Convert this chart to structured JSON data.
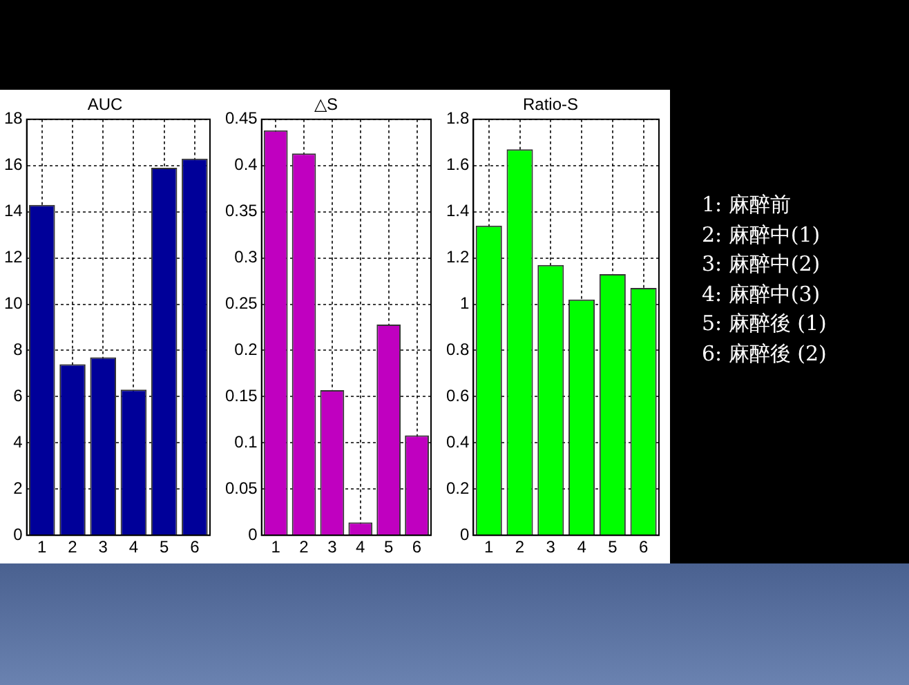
{
  "chart_data": [
    {
      "type": "bar",
      "title": "AUC",
      "categories": [
        "1",
        "2",
        "3",
        "4",
        "5",
        "6"
      ],
      "values": [
        14.3,
        7.4,
        7.7,
        6.3,
        15.9,
        16.3
      ],
      "color": "#000099",
      "ylim": [
        0,
        18
      ],
      "yticks": [
        0,
        2,
        4,
        6,
        8,
        10,
        12,
        14,
        16,
        18
      ],
      "grid": true
    },
    {
      "type": "bar",
      "title": "△S",
      "categories": [
        "1",
        "2",
        "3",
        "4",
        "5",
        "6"
      ],
      "values": [
        0.438,
        0.413,
        0.157,
        0.014,
        0.228,
        0.108
      ],
      "color": "#c000c0",
      "ylim": [
        0,
        0.45
      ],
      "yticks": [
        0,
        0.05,
        0.1,
        0.15,
        0.2,
        0.25,
        0.3,
        0.35,
        0.4,
        0.45
      ],
      "grid": true
    },
    {
      "type": "bar",
      "title": "Ratio-S",
      "categories": [
        "1",
        "2",
        "3",
        "4",
        "5",
        "6"
      ],
      "values": [
        1.34,
        1.67,
        1.17,
        1.02,
        1.13,
        1.07
      ],
      "color": "#00ff00",
      "ylim": [
        0,
        1.8
      ],
      "yticks": [
        0,
        0.2,
        0.4,
        0.6,
        0.8,
        1,
        1.2,
        1.4,
        1.6,
        1.8
      ],
      "grid": true,
      "annotations": [
        "1: 麻醉前",
        "2: 麻醉中(1)",
        "3: 麻醉中(2)",
        "4: 麻醉中(3)",
        "5: 麻醉後 (1)",
        "6: 麻醉後 (2)"
      ]
    }
  ]
}
